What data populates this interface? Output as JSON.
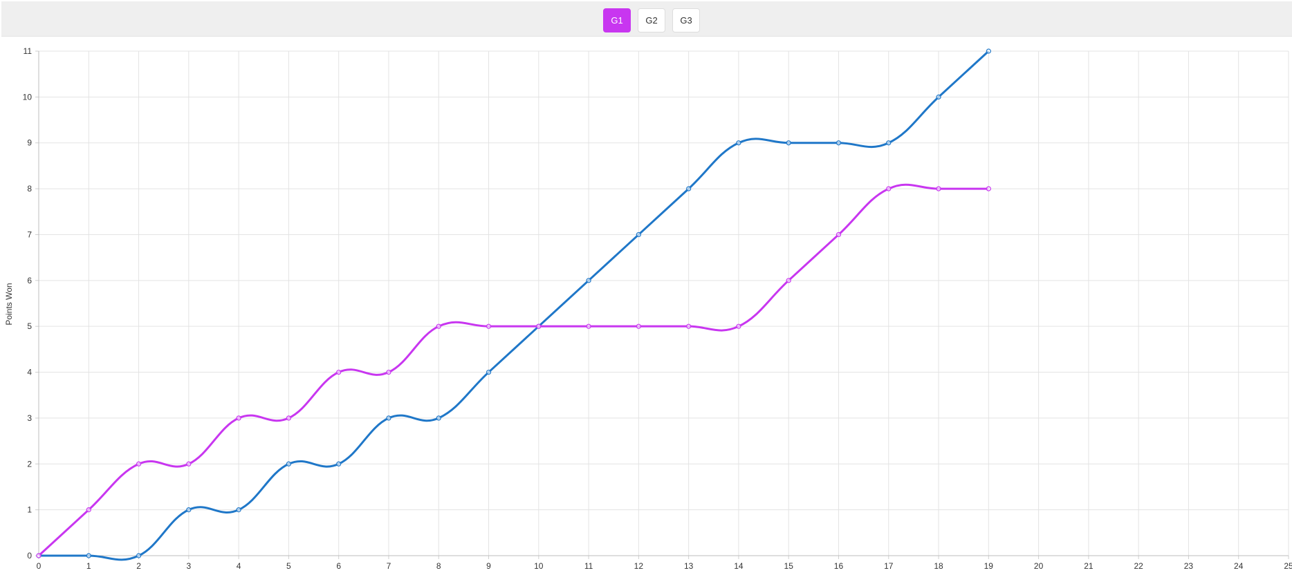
{
  "toolbar": {
    "tabs": [
      {
        "label": "G1",
        "active": true
      },
      {
        "label": "G2",
        "active": false
      },
      {
        "label": "G3",
        "active": false
      }
    ],
    "active_color": "#c836f0"
  },
  "chart_data": {
    "type": "line",
    "title": "",
    "xlabel": "",
    "ylabel": "Points Won",
    "xlim": [
      0,
      25
    ],
    "ylim": [
      0,
      11
    ],
    "x_ticks": [
      0,
      1,
      2,
      3,
      4,
      5,
      6,
      7,
      8,
      9,
      10,
      11,
      12,
      13,
      14,
      15,
      16,
      17,
      18,
      19,
      20,
      21,
      22,
      23,
      24,
      25
    ],
    "y_ticks": [
      0,
      1,
      2,
      3,
      4,
      5,
      6,
      7,
      8,
      9,
      10,
      11
    ],
    "grid": true,
    "x": [
      0,
      1,
      2,
      3,
      4,
      5,
      6,
      7,
      8,
      9,
      10,
      11,
      12,
      13,
      14,
      15,
      16,
      17,
      18,
      19
    ],
    "series": [
      {
        "color": "#1f77c8",
        "values": [
          0,
          0,
          0,
          1,
          1,
          2,
          2,
          3,
          3,
          4,
          5,
          6,
          7,
          8,
          9,
          9,
          9,
          9,
          10,
          11
        ]
      },
      {
        "color": "#c836f0",
        "values": [
          0,
          1,
          2,
          2,
          3,
          3,
          4,
          4,
          5,
          5,
          5,
          5,
          5,
          5,
          5,
          6,
          7,
          8,
          8,
          8
        ]
      }
    ]
  }
}
